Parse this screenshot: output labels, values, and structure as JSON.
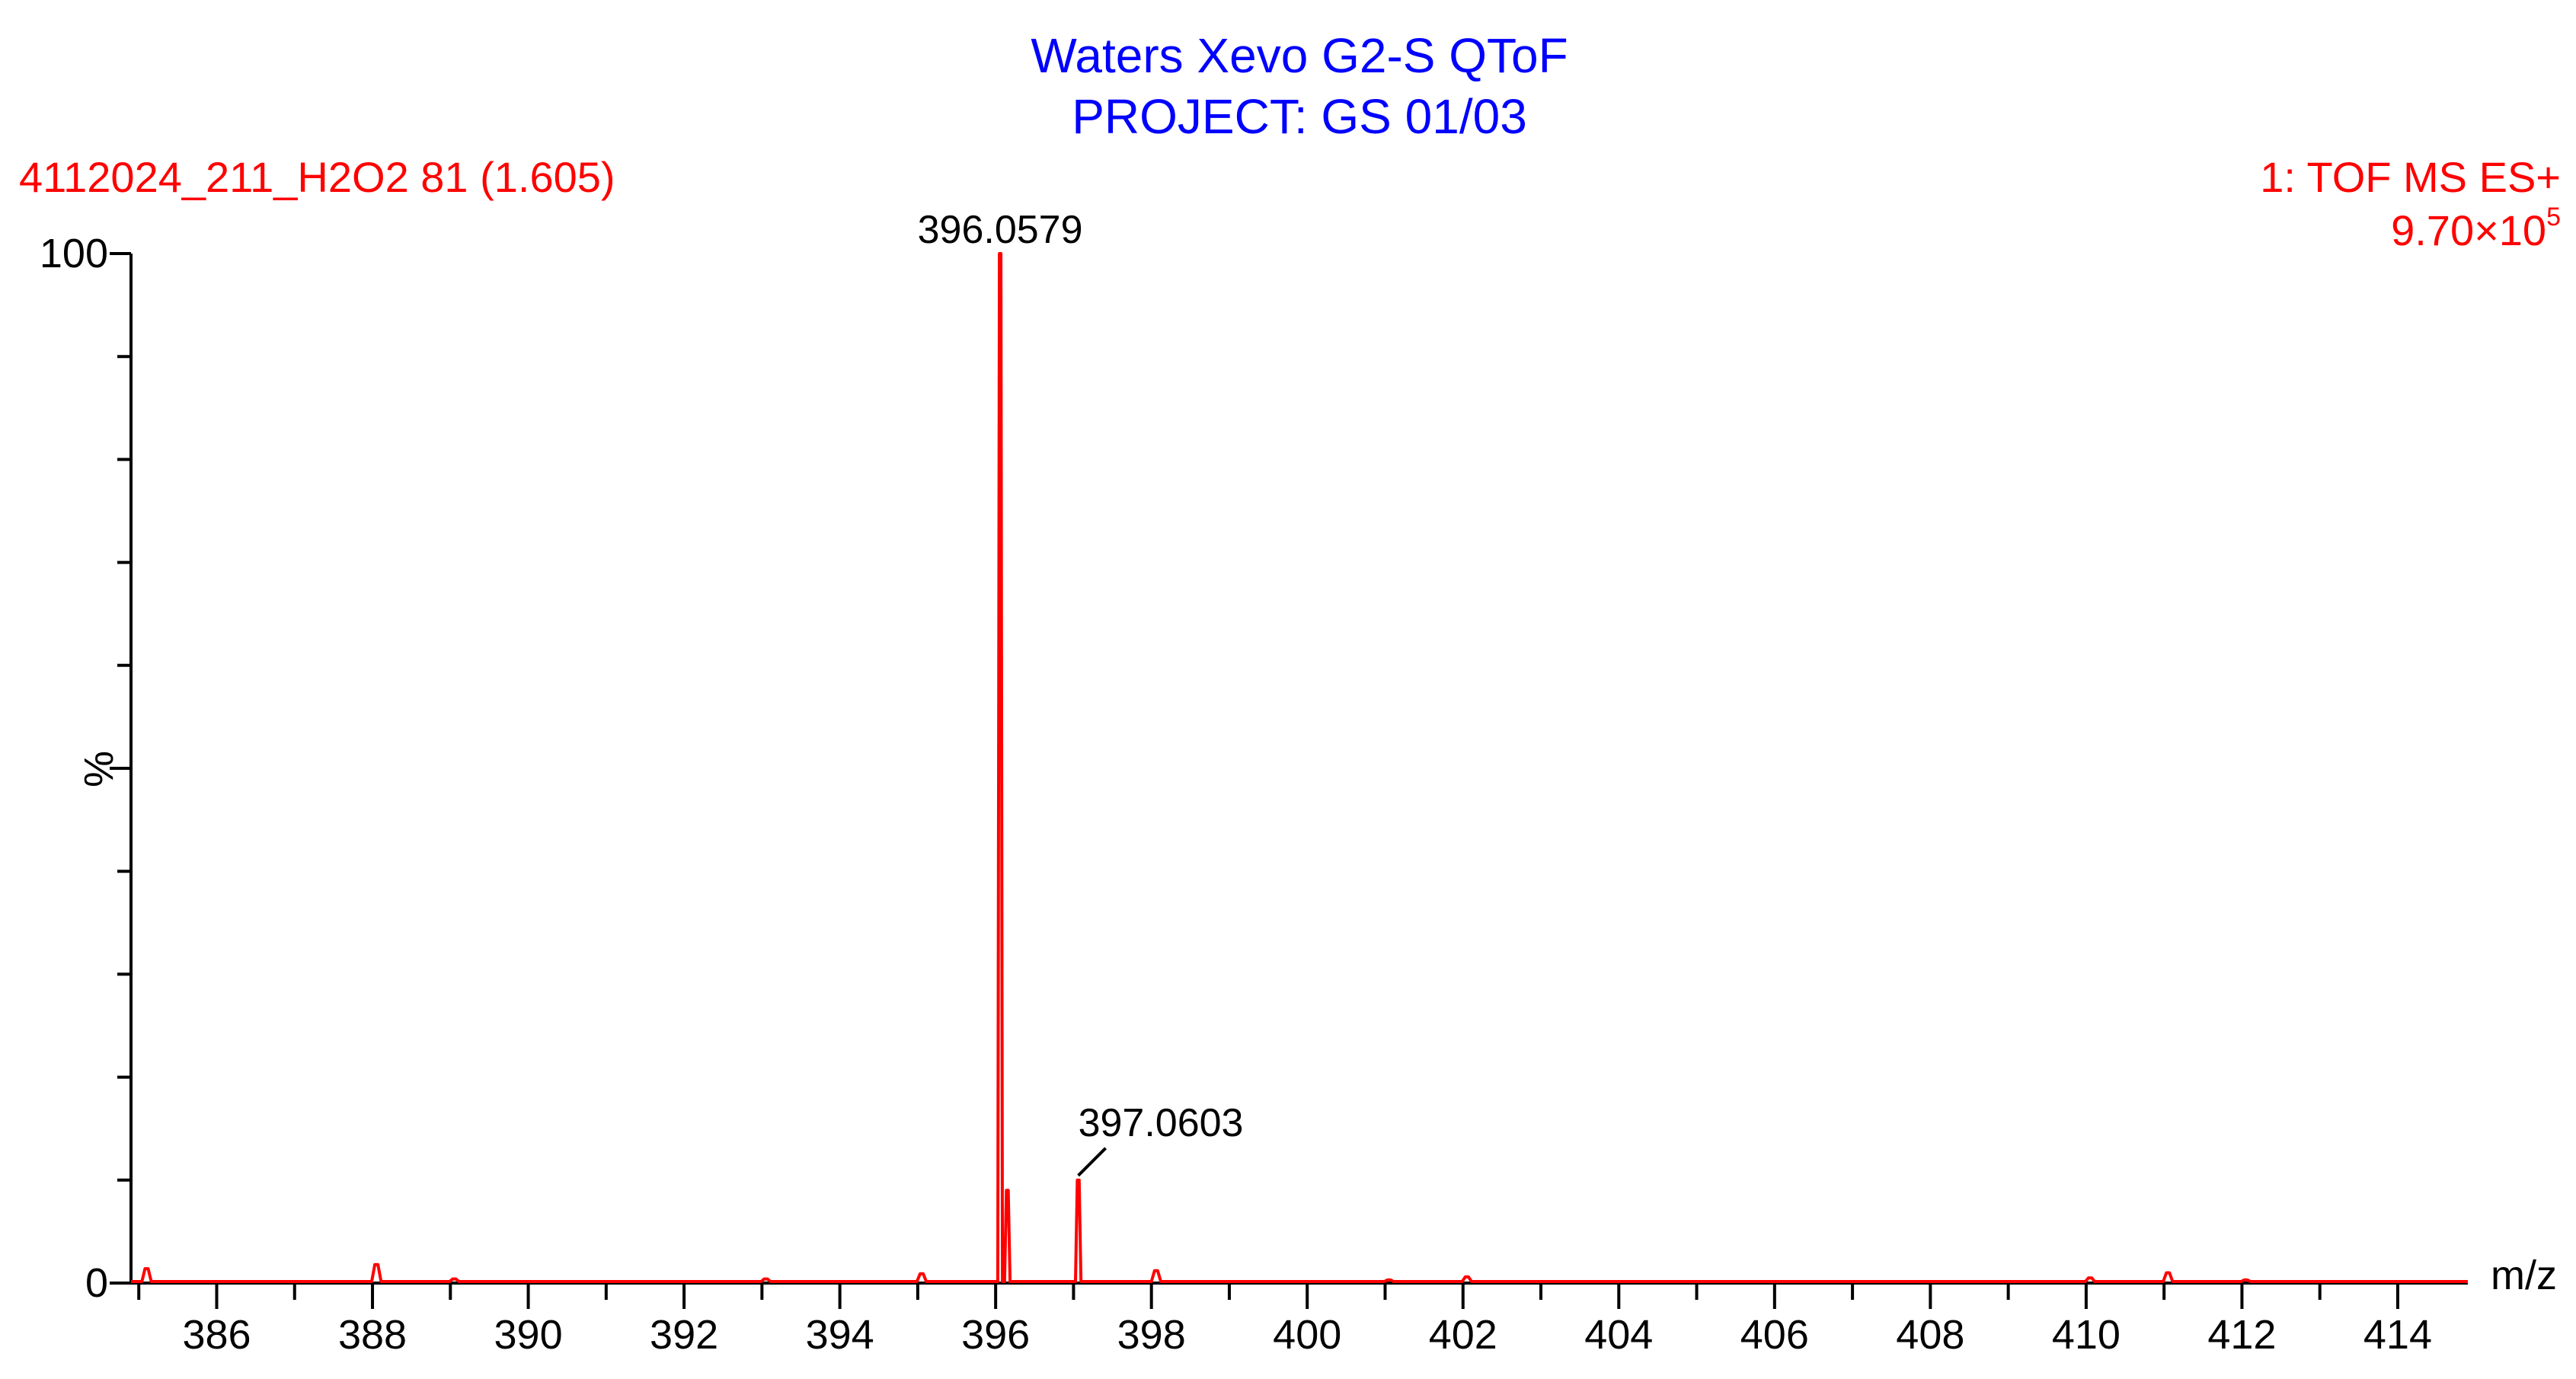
{
  "header": {
    "title_line1": "Waters Xevo G2-S QToF",
    "title_line2": "PROJECT: GS 01/03",
    "sample": "4112024_211_H2O2 81 (1.605)",
    "scan_mode": "1: TOF MS ES+",
    "intensity_mantissa": "9.70×10",
    "intensity_exponent": "5"
  },
  "colors": {
    "title": "#0000ff",
    "header": "#ff0000",
    "trace": "#ff0000",
    "axis": "#000000"
  },
  "chart_data": {
    "type": "line",
    "title": "Waters Xevo G2-S QToF",
    "xlabel": "m/z",
    "ylabel": "%",
    "xlim": [
      384.9,
      414.9
    ],
    "ylim": [
      0,
      100
    ],
    "x_ticks": [
      386,
      388,
      390,
      392,
      394,
      396,
      398,
      400,
      402,
      404,
      406,
      408,
      410,
      412,
      414
    ],
    "y_ticks": [
      0,
      100
    ],
    "peaks": [
      {
        "mz": 385.1,
        "intensity": 1.4
      },
      {
        "mz": 388.05,
        "intensity": 1.8
      },
      {
        "mz": 389.05,
        "intensity": 0.4
      },
      {
        "mz": 393.05,
        "intensity": 0.4
      },
      {
        "mz": 395.05,
        "intensity": 0.9
      },
      {
        "mz": 396.0579,
        "intensity": 100,
        "label": "396.0579"
      },
      {
        "mz": 396.15,
        "intensity": 9
      },
      {
        "mz": 397.0603,
        "intensity": 10,
        "label": "397.0603"
      },
      {
        "mz": 398.06,
        "intensity": 1.2
      },
      {
        "mz": 401.05,
        "intensity": 0.3
      },
      {
        "mz": 402.05,
        "intensity": 0.6
      },
      {
        "mz": 410.05,
        "intensity": 0.5
      },
      {
        "mz": 411.05,
        "intensity": 1.0
      },
      {
        "mz": 412.05,
        "intensity": 0.3
      }
    ]
  }
}
